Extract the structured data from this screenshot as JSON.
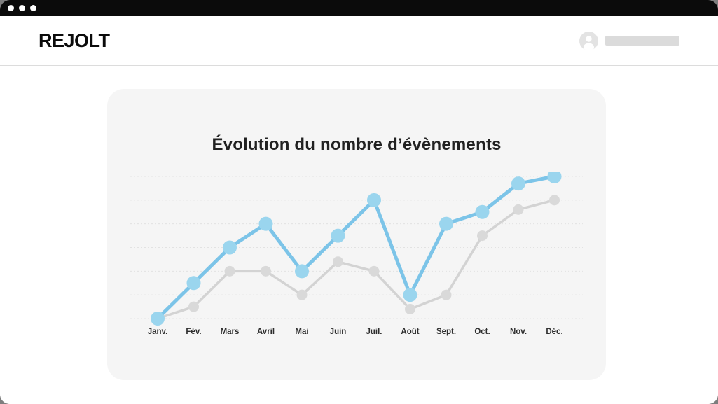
{
  "window": {
    "controls": [
      "window-dot",
      "window-dot",
      "window-dot"
    ]
  },
  "header": {
    "logo_text": "REJOLT"
  },
  "chart_data": {
    "type": "line",
    "title": "Évolution du nombre d’évènements",
    "categories": [
      "Janv.",
      "Fév.",
      "Mars",
      "Avril",
      "Mai",
      "Juin",
      "Juil.",
      "Août",
      "Sept.",
      "Oct.",
      "Nov.",
      "Déc."
    ],
    "series": [
      {
        "name": "series-1",
        "color": "#7cc4e8",
        "point_color": "#9ad5ee",
        "line_width": 5,
        "point_radius": 10,
        "values": [
          0,
          15,
          30,
          40,
          20,
          35,
          50,
          10,
          40,
          45,
          57,
          60
        ]
      },
      {
        "name": "series-2",
        "color": "#d3d3d3",
        "point_color": "#d9d9d9",
        "line_width": 3.5,
        "point_radius": 7.5,
        "values": [
          0,
          5,
          20,
          20,
          10,
          24,
          20,
          4,
          10,
          35,
          46,
          50
        ]
      }
    ],
    "xlabel": "",
    "ylabel": "",
    "ylim": [
      0,
      60
    ],
    "gridline_step": 10,
    "grid": true,
    "legend": false,
    "gridline_color": "#e2e2e2",
    "label_color": "#2d2d2d"
  },
  "colors": {
    "topbar": "#0b0b0b",
    "backdrop": "#7e7e7e",
    "card_bg": "#f5f5f5",
    "divider": "#dcdcdc",
    "avatar_bg": "#e3e3e3",
    "placeholder": "#dbdbdb"
  }
}
